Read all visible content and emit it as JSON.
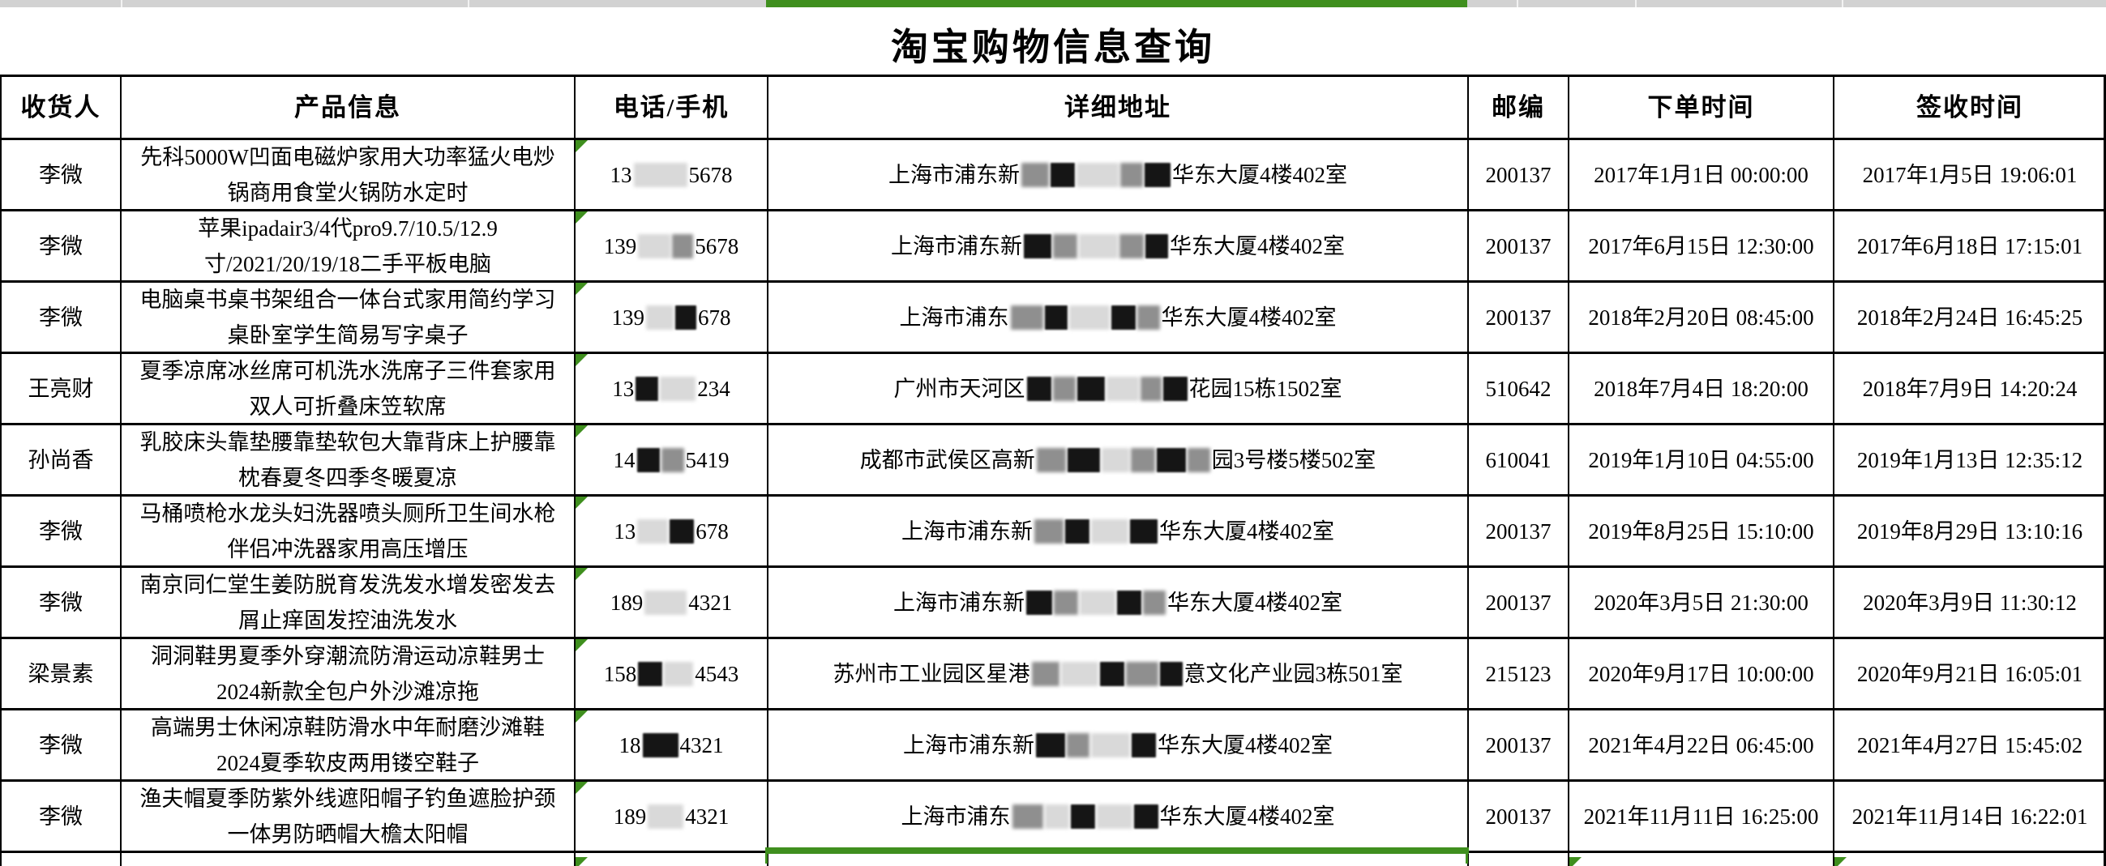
{
  "accent": {
    "selection_green": "#3f8f1e",
    "topbar_gray": "#d2d2d2"
  },
  "title": "淘宝购物信息查询",
  "table": {
    "headers": [
      "收货人",
      "产品信息",
      "电话/手机",
      "详细地址",
      "邮编",
      "下单时间",
      "签收时间"
    ],
    "rows": [
      {
        "recipient": "李微",
        "product": "先科5000W凹面电磁炉家用大功率猛火电炒锅商用食堂火锅防水定时",
        "phone": [
          {
            "t": "13"
          },
          {
            "b": "light",
            "w": 66
          },
          {
            "t": "5678"
          }
        ],
        "address": [
          {
            "t": "上海市浦东新"
          },
          {
            "b": "gray",
            "w": 34
          },
          {
            "b": "dark",
            "w": 30
          },
          {
            "b": "light",
            "w": 52
          },
          {
            "b": "gray",
            "w": 28
          },
          {
            "b": "dark",
            "w": 32
          },
          {
            "t": "华东大厦4楼402室"
          }
        ],
        "postal": "200137",
        "order_time": "2017年1月1日 00:00:00",
        "sign_time": "2017年1月5日 19:06:01"
      },
      {
        "recipient": "李微",
        "product": "苹果ipadair3/4代pro9.7/10.5/12.9寸/2021/20/19/18二手平板电脑",
        "phone": [
          {
            "t": "139"
          },
          {
            "b": "light",
            "w": 40
          },
          {
            "b": "gray",
            "w": 26
          },
          {
            "t": "5678"
          }
        ],
        "address": [
          {
            "t": "上海市浦东新"
          },
          {
            "b": "dark",
            "w": 34
          },
          {
            "b": "gray",
            "w": 30
          },
          {
            "b": "light",
            "w": 48
          },
          {
            "b": "gray",
            "w": 30
          },
          {
            "b": "dark",
            "w": 28
          },
          {
            "t": "华东大厦4楼402室"
          }
        ],
        "postal": "200137",
        "order_time": "2017年6月15日 12:30:00",
        "sign_time": "2017年6月18日 17:15:01"
      },
      {
        "recipient": "李微",
        "product": "电脑桌书桌书架组合一体台式家用简约学习桌卧室学生简易写字桌子",
        "phone": [
          {
            "t": "139"
          },
          {
            "b": "light",
            "w": 34
          },
          {
            "b": "dark",
            "w": 26
          },
          {
            "t": "678"
          }
        ],
        "address": [
          {
            "t": "上海市浦东"
          },
          {
            "b": "gray",
            "w": 40
          },
          {
            "b": "dark",
            "w": 28
          },
          {
            "b": "light",
            "w": 50
          },
          {
            "b": "dark",
            "w": 30
          },
          {
            "b": "gray",
            "w": 28
          },
          {
            "t": "华东大厦4楼402室"
          }
        ],
        "postal": "200137",
        "order_time": "2018年2月20日 08:45:00",
        "sign_time": "2018年2月24日 16:45:25"
      },
      {
        "recipient": "王亮财",
        "product": "夏季凉席冰丝席可机洗水洗席子三件套家用双人可折叠床笠软席",
        "phone": [
          {
            "t": "13"
          },
          {
            "b": "dark",
            "w": 28
          },
          {
            "b": "light",
            "w": 44
          },
          {
            "t": "234"
          }
        ],
        "address": [
          {
            "t": "广州市天河区"
          },
          {
            "b": "dark",
            "w": 30
          },
          {
            "b": "gray",
            "w": 28
          },
          {
            "b": "dark",
            "w": 34
          },
          {
            "b": "light",
            "w": 40
          },
          {
            "b": "gray",
            "w": 26
          },
          {
            "b": "dark",
            "w": 30
          },
          {
            "t": "花园15栋1502室"
          }
        ],
        "postal": "510642",
        "order_time": "2018年7月4日 18:20:00",
        "sign_time": "2018年7月9日 14:20:24"
      },
      {
        "recipient": "孙尚香",
        "product": "乳胶床头靠垫腰靠垫软包大靠背床上护腰靠枕春夏冬四季冬暖夏凉",
        "phone": [
          {
            "t": "14"
          },
          {
            "b": "dark",
            "w": 28
          },
          {
            "b": "gray",
            "w": 28
          },
          {
            "t": "5419"
          }
        ],
        "address": [
          {
            "t": "成都市武侯区高新"
          },
          {
            "b": "gray",
            "w": 36
          },
          {
            "b": "dark",
            "w": 40
          },
          {
            "b": "light",
            "w": 34
          },
          {
            "b": "gray",
            "w": 30
          },
          {
            "b": "dark",
            "w": 36
          },
          {
            "b": "gray",
            "w": 28
          },
          {
            "t": "园3号楼5楼502室"
          }
        ],
        "postal": "610041",
        "order_time": "2019年1月10日 04:55:00",
        "sign_time": "2019年1月13日 12:35:12"
      },
      {
        "recipient": "李微",
        "product": "马桶喷枪水龙头妇洗器喷头厕所卫生间水枪伴侣冲洗器家用高压增压",
        "phone": [
          {
            "t": "13"
          },
          {
            "b": "light",
            "w": 38
          },
          {
            "b": "dark",
            "w": 30
          },
          {
            "t": "678"
          }
        ],
        "address": [
          {
            "t": "上海市浦东新"
          },
          {
            "b": "gray",
            "w": 36
          },
          {
            "b": "dark",
            "w": 30
          },
          {
            "b": "light",
            "w": 46
          },
          {
            "b": "dark",
            "w": 34
          },
          {
            "t": "华东大厦4楼402室"
          }
        ],
        "postal": "200137",
        "order_time": "2019年8月25日 15:10:00",
        "sign_time": "2019年8月29日 13:10:16"
      },
      {
        "recipient": "李微",
        "product": "南京同仁堂生姜防脱育发洗发水增发密发去屑止痒固发控油洗发水",
        "phone": [
          {
            "t": "189"
          },
          {
            "b": "light",
            "w": 52
          },
          {
            "t": "4321"
          }
        ],
        "address": [
          {
            "t": "上海市浦东新"
          },
          {
            "b": "dark",
            "w": 32
          },
          {
            "b": "gray",
            "w": 30
          },
          {
            "b": "light",
            "w": 44
          },
          {
            "b": "dark",
            "w": 30
          },
          {
            "b": "gray",
            "w": 28
          },
          {
            "t": "华东大厦4楼402室"
          }
        ],
        "postal": "200137",
        "order_time": "2020年3月5日 21:30:00",
        "sign_time": "2020年3月9日 11:30:12"
      },
      {
        "recipient": "梁景素",
        "product": "洞洞鞋男夏季外穿潮流防滑运动凉鞋男士2024新款全包户外沙滩凉拖",
        "phone": [
          {
            "t": "158"
          },
          {
            "b": "dark",
            "w": 30
          },
          {
            "b": "light",
            "w": 36
          },
          {
            "t": "4543"
          }
        ],
        "address": [
          {
            "t": "苏州市工业园区星港"
          },
          {
            "b": "gray",
            "w": 34
          },
          {
            "b": "light",
            "w": 46
          },
          {
            "b": "dark",
            "w": 30
          },
          {
            "b": "gray",
            "w": 40
          },
          {
            "b": "dark",
            "w": 28
          },
          {
            "t": "意文化产业园3栋501室"
          }
        ],
        "postal": "215123",
        "order_time": "2020年9月17日 10:00:00",
        "sign_time": "2020年9月21日 16:05:01"
      },
      {
        "recipient": "李微",
        "product": "高端男士休闲凉鞋防滑水中年耐磨沙滩鞋2024夏季软皮两用镂空鞋子",
        "phone": [
          {
            "t": "18"
          },
          {
            "b": "dark",
            "w": 44
          },
          {
            "t": "4321"
          }
        ],
        "address": [
          {
            "t": "上海市浦东新"
          },
          {
            "b": "dark",
            "w": 36
          },
          {
            "b": "gray",
            "w": 28
          },
          {
            "b": "light",
            "w": 48
          },
          {
            "b": "dark",
            "w": 30
          },
          {
            "t": "华东大厦4楼402室"
          }
        ],
        "postal": "200137",
        "order_time": "2021年4月22日 06:45:00",
        "sign_time": "2021年4月27日 15:45:02"
      },
      {
        "recipient": "李微",
        "product": "渔夫帽夏季防紫外线遮阳帽子钓鱼遮脸护颈一体男防晒帽大檐太阳帽",
        "phone": [
          {
            "t": "189"
          },
          {
            "b": "light",
            "w": 44
          },
          {
            "t": "4321"
          }
        ],
        "address": [
          {
            "t": "上海市浦东"
          },
          {
            "b": "gray",
            "w": 38
          },
          {
            "b": "light",
            "w": 30
          },
          {
            "b": "dark",
            "w": 30
          },
          {
            "b": "light",
            "w": 44
          },
          {
            "b": "dark",
            "w": 30
          },
          {
            "t": "华东大厦4楼402室"
          }
        ],
        "postal": "200137",
        "order_time": "2021年11月11日 16:25:00",
        "sign_time": "2021年11月14日 16:22:01"
      }
    ],
    "partial_row": {
      "visible": true
    }
  }
}
